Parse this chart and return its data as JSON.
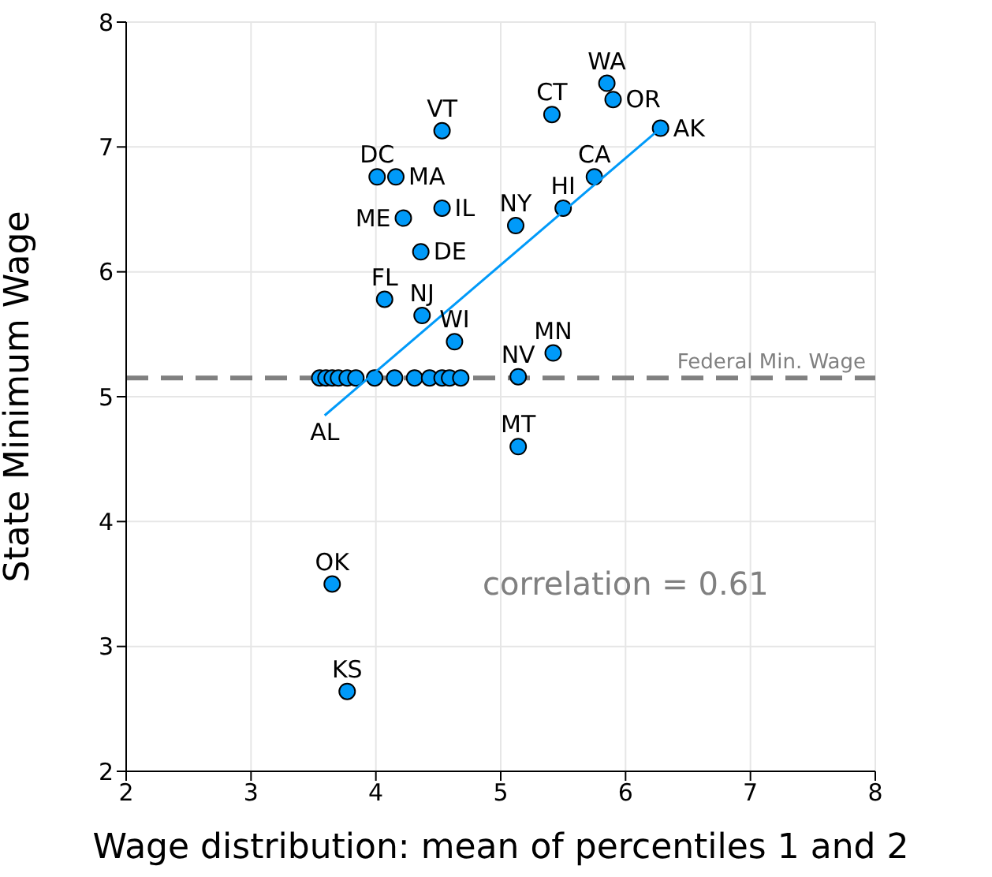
{
  "chart_data": {
    "type": "scatter",
    "xlabel": "Wage distribution: mean of percentiles 1 and 2",
    "ylabel": "State Minimum Wage",
    "xlim": [
      2,
      8
    ],
    "ylim": [
      2,
      8
    ],
    "xticks": [
      2,
      3,
      4,
      5,
      6,
      7,
      8
    ],
    "yticks": [
      2,
      3,
      4,
      5,
      6,
      7,
      8
    ],
    "grid": true,
    "legend": false,
    "series": [
      {
        "color": "#009af9",
        "marker": "circle",
        "x": [
          5.85,
          5.9,
          5.41,
          6.28,
          4.53,
          4.01,
          4.16,
          5.75,
          4.53,
          5.5,
          4.22,
          5.12,
          4.36,
          4.07,
          4.37,
          4.63,
          5.42,
          5.14,
          5.14,
          3.65,
          3.77,
          3.55,
          3.6,
          3.65,
          3.7,
          3.77,
          3.84,
          3.99,
          4.15,
          4.31,
          4.43,
          4.53,
          4.59,
          4.68
        ],
        "values": [
          7.51,
          7.38,
          7.26,
          7.15,
          7.13,
          6.76,
          6.76,
          6.76,
          6.51,
          6.51,
          6.43,
          6.37,
          6.16,
          5.78,
          5.65,
          5.44,
          5.35,
          5.16,
          4.6,
          3.5,
          2.64,
          5.15,
          5.15,
          5.15,
          5.15,
          5.15,
          5.15,
          5.15,
          5.15,
          5.15,
          5.15,
          5.15,
          5.15,
          5.15
        ],
        "value_labels": [
          "WA",
          "OR",
          "CT",
          "AK",
          "VT",
          "DC",
          "MA",
          "CA",
          "IL",
          "HI",
          "ME",
          "NY",
          "DE",
          "FL",
          "NJ",
          "WI",
          "MN",
          "NV",
          "MT",
          "OK",
          "KS",
          null,
          null,
          null,
          null,
          null,
          null,
          null,
          null,
          null,
          null,
          null,
          null,
          null
        ]
      },
      {
        "type": "line",
        "color": "#009af9",
        "marker": "none",
        "line_style": "solid",
        "x": [
          3.59,
          6.28
        ],
        "values": [
          4.85,
          7.15
        ]
      }
    ],
    "ref_lines": [
      {
        "axis": "y",
        "value": 5.15,
        "label": "Federal Min. Wage",
        "color": "#808080",
        "line_style": "dashed"
      }
    ],
    "annotations": [
      {
        "text": "AL",
        "x": 3.59,
        "y": 4.85
      },
      "correlation = 0.61"
    ]
  }
}
